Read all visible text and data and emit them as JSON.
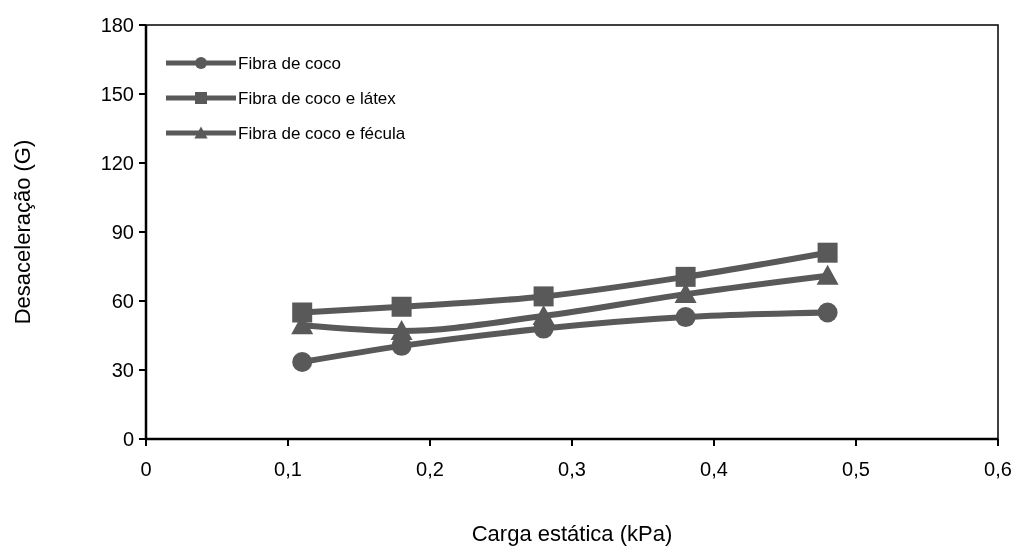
{
  "chart_data": {
    "type": "line",
    "xlabel": "Carga estática (kPa)",
    "ylabel": "Desaceleração (G)",
    "x": [
      0.11,
      0.18,
      0.28,
      0.38,
      0.48
    ],
    "series": [
      {
        "name": "Fibra de coco",
        "color": "#595959",
        "marker": "circle",
        "values": [
          33.5,
          40.5,
          48,
          53,
          55
        ]
      },
      {
        "name": "Fibra de coco e látex",
        "color": "#595959",
        "marker": "square",
        "values": [
          55,
          57.5,
          62,
          70.5,
          81
        ]
      },
      {
        "name": "Fibra de coco e fécula",
        "color": "#595959",
        "marker": "triangle",
        "values": [
          49.5,
          47,
          53.5,
          63,
          71
        ]
      }
    ],
    "xlim": [
      0,
      0.6
    ],
    "xticks": [
      {
        "value": 0,
        "label": "0"
      },
      {
        "value": 0.1,
        "label": "0,1"
      },
      {
        "value": 0.2,
        "label": "0,2"
      },
      {
        "value": 0.3,
        "label": "0,3"
      },
      {
        "value": 0.4,
        "label": "0,4"
      },
      {
        "value": 0.5,
        "label": "0,5"
      },
      {
        "value": 0.6,
        "label": "0,6"
      }
    ],
    "ylim": [
      0,
      180
    ],
    "yticks": [
      0,
      30,
      60,
      90,
      120,
      150,
      180
    ],
    "legend": "top left",
    "line_style": "solid"
  }
}
